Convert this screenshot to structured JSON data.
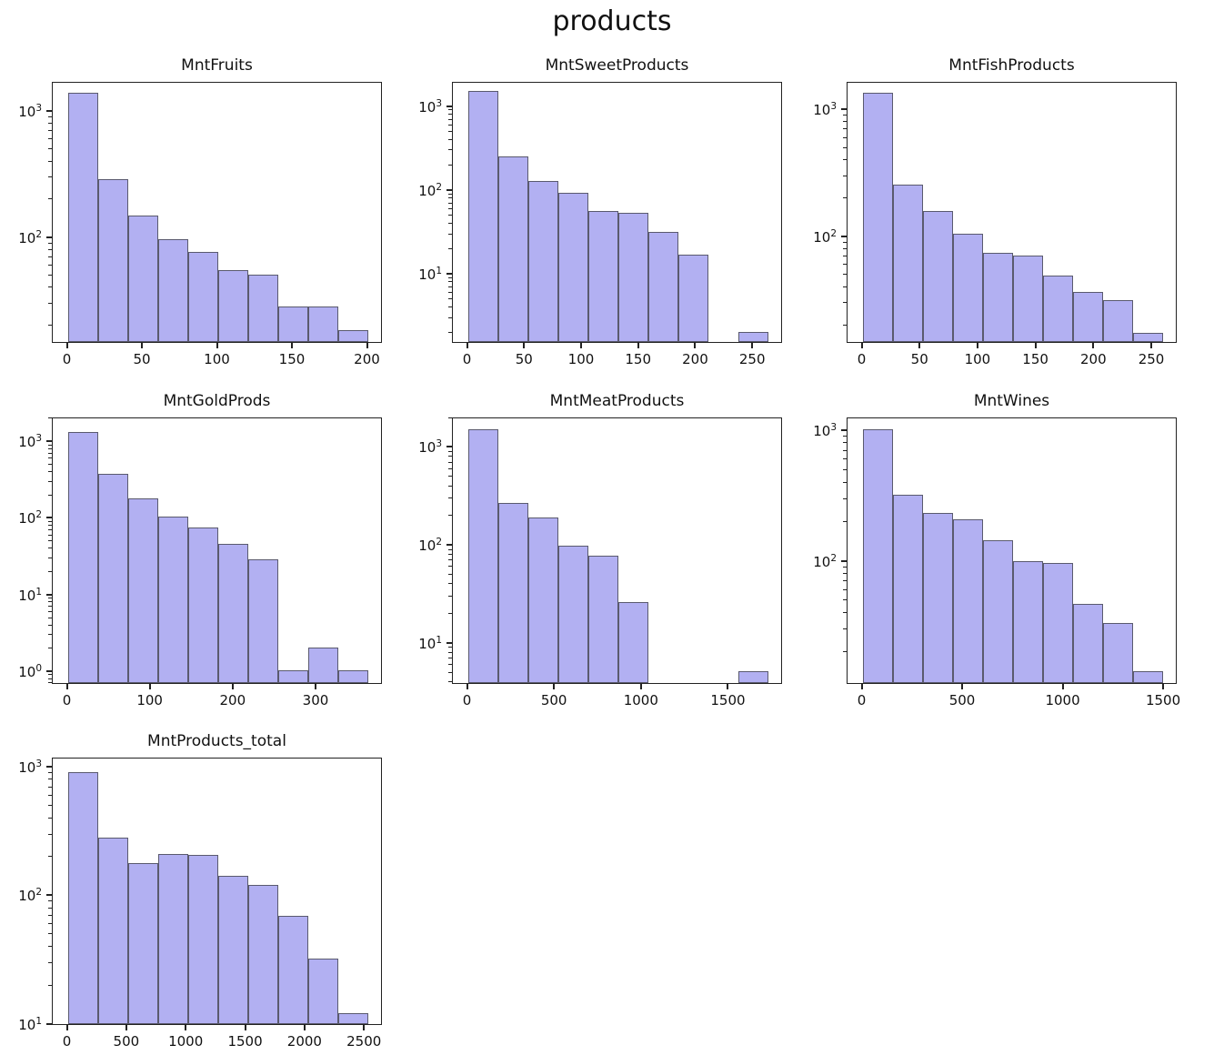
{
  "figure": {
    "title": "products",
    "bar_fill": "#b2b0f2",
    "bar_edge": "#5a5a6e",
    "axis_color": "#222222",
    "text_color": "#111111"
  },
  "chart_data": {
    "type": "histogram-grid",
    "suptitle": "products",
    "yscale": "log",
    "grid": {
      "columns": 3,
      "rows": 3
    },
    "subplots": [
      {
        "title": "MntFruits",
        "type": "histogram",
        "bin_start": 0,
        "bin_width": 20,
        "counts": [
          1440,
          290,
          150,
          97,
          76,
          55,
          50,
          28,
          28,
          18
        ],
        "xticks": [
          0,
          50,
          100,
          150,
          200
        ],
        "yticks_exp": [
          2,
          3
        ],
        "ylim": [
          14.5,
          1700
        ]
      },
      {
        "title": "MntSweetProducts",
        "type": "histogram",
        "bin_start": 0,
        "bin_width": 26.3,
        "counts": [
          1600,
          260,
          130,
          95,
          57,
          54,
          32,
          17,
          0,
          2
        ],
        "xticks": [
          0,
          50,
          100,
          150,
          200,
          250
        ],
        "yticks_exp": [
          1,
          2,
          3
        ],
        "ylim": [
          1.5,
          1950
        ]
      },
      {
        "title": "MntFishProducts",
        "type": "histogram",
        "bin_start": 0,
        "bin_width": 25.9,
        "counts": [
          1400,
          260,
          160,
          105,
          74,
          70,
          49,
          36,
          31,
          17
        ],
        "xticks": [
          0,
          50,
          100,
          150,
          200,
          250
        ],
        "yticks_exp": [
          2,
          3
        ],
        "ylim": [
          14.4,
          1650
        ]
      },
      {
        "title": "MntGoldProds",
        "type": "histogram",
        "bin_start": 0,
        "bin_width": 36.2,
        "counts": [
          1400,
          390,
          185,
          108,
          76,
          47,
          29,
          1,
          2,
          1
        ],
        "xticks": [
          0,
          100,
          200,
          300
        ],
        "yticks_exp": [
          0,
          1,
          2,
          3
        ],
        "ylim": [
          0.68,
          2050
        ]
      },
      {
        "title": "MntMeatProducts",
        "type": "histogram",
        "bin_start": 0,
        "bin_width": 172.5,
        "counts": [
          1580,
          275,
          192,
          100,
          78,
          26,
          0,
          0,
          0,
          5
        ],
        "xticks": [
          0,
          500,
          1000,
          1500
        ],
        "yticks_exp": [
          1,
          2,
          3
        ],
        "ylim": [
          3.8,
          2000
        ]
      },
      {
        "title": "MntWines",
        "type": "histogram",
        "bin_start": 0,
        "bin_width": 149.3,
        "counts": [
          1040,
          325,
          235,
          210,
          145,
          100,
          97,
          47,
          33,
          14
        ],
        "xticks": [
          0,
          500,
          1000,
          1500
        ],
        "yticks_exp": [
          2,
          3
        ],
        "ylim": [
          11.4,
          1250
        ]
      },
      {
        "title": "MntProducts_total",
        "type": "histogram",
        "bin_start": 0,
        "bin_width": 252.5,
        "counts": [
          940,
          287,
          180,
          212,
          208,
          143,
          122,
          70,
          32,
          12
        ],
        "xticks": [
          0,
          500,
          1000,
          1500,
          2000,
          2500
        ],
        "yticks_exp": [
          1,
          2,
          3
        ],
        "ylim": [
          9.8,
          1180
        ]
      }
    ]
  }
}
